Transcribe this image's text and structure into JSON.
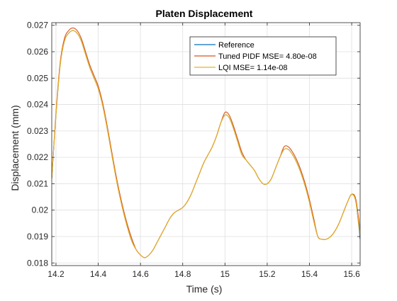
{
  "chart_data": {
    "type": "line",
    "title": "Platen Displacement",
    "xlabel": "Time (s)",
    "ylabel": "Displacement (mm)",
    "xlim": [
      14.18,
      15.64
    ],
    "ylim": [
      0.0179,
      0.0271
    ],
    "grid": true,
    "legend_position": "top-right",
    "x_ticks": [
      14.2,
      14.4,
      14.6,
      14.8,
      15,
      15.2,
      15.4,
      15.6
    ],
    "x_tick_labels": [
      "14.2",
      "14.4",
      "14.6",
      "14.8",
      "15",
      "15.2",
      "15.4",
      "15.6"
    ],
    "y_ticks": [
      0.018,
      0.019,
      0.02,
      0.021,
      0.022,
      0.023,
      0.024,
      0.025,
      0.026,
      0.027
    ],
    "y_tick_labels": [
      "0.018",
      "0.019",
      "0.02",
      "0.021",
      "0.022",
      "0.023",
      "0.024",
      "0.025",
      "0.026",
      "0.027"
    ],
    "series": [
      {
        "name": "Reference",
        "color": "#0072BD",
        "x": [
          14.18,
          14.2,
          14.22,
          14.24,
          14.26,
          14.28,
          14.3,
          14.32,
          14.34,
          14.36,
          14.38,
          14.4,
          14.42,
          14.44,
          14.46,
          14.48,
          14.5,
          14.52,
          14.54,
          14.56,
          14.58,
          14.6,
          14.62,
          14.64,
          14.66,
          14.68,
          14.7,
          14.72,
          14.74,
          14.76,
          14.78,
          14.8,
          14.82,
          14.84,
          14.86,
          14.88,
          14.9,
          14.92,
          14.94,
          14.96,
          14.98,
          15.0,
          15.02,
          15.04,
          15.06,
          15.08,
          15.1,
          15.12,
          15.14,
          15.16,
          15.18,
          15.2,
          15.22,
          15.24,
          15.26,
          15.28,
          15.3,
          15.32,
          15.34,
          15.36,
          15.38,
          15.4,
          15.42,
          15.44,
          15.46,
          15.48,
          15.5,
          15.52,
          15.54,
          15.56,
          15.58,
          15.6,
          15.62,
          15.64
        ],
        "y": [
          0.0212,
          0.0236,
          0.0255,
          0.0264,
          0.0267,
          0.0268,
          0.0267,
          0.0264,
          0.0259,
          0.0254,
          0.025,
          0.0246,
          0.024,
          0.0232,
          0.0223,
          0.0214,
          0.0206,
          0.0199,
          0.0193,
          0.0188,
          0.0185,
          0.0183,
          0.0182,
          0.0183,
          0.0185,
          0.0188,
          0.0191,
          0.0194,
          0.0197,
          0.0199,
          0.02,
          0.0201,
          0.0203,
          0.0206,
          0.021,
          0.0214,
          0.0218,
          0.0221,
          0.0224,
          0.0228,
          0.0233,
          0.0236,
          0.0235,
          0.0231,
          0.0226,
          0.0221,
          0.0219,
          0.0217,
          0.0215,
          0.0212,
          0.021,
          0.021,
          0.0212,
          0.0216,
          0.022,
          0.0223,
          0.0223,
          0.0221,
          0.0218,
          0.0214,
          0.0209,
          0.0203,
          0.0196,
          0.019,
          0.0189,
          0.0189,
          0.019,
          0.0192,
          0.0195,
          0.0199,
          0.0203,
          0.0206,
          0.0203,
          0.0189
        ]
      },
      {
        "name": "Tuned PIDF MSE= 4.80e-08",
        "color": "#D95319",
        "x": [
          14.18,
          14.2,
          14.22,
          14.24,
          14.26,
          14.28,
          14.3,
          14.32,
          14.34,
          14.36,
          14.38,
          14.4,
          14.42,
          14.44,
          14.46,
          14.48,
          14.5,
          14.52,
          14.54,
          14.56,
          14.58,
          14.6,
          14.62,
          14.64,
          14.66,
          14.68,
          14.7,
          14.72,
          14.74,
          14.76,
          14.78,
          14.8,
          14.82,
          14.84,
          14.86,
          14.88,
          14.9,
          14.92,
          14.94,
          14.96,
          14.98,
          15.0,
          15.02,
          15.04,
          15.06,
          15.08,
          15.1,
          15.12,
          15.14,
          15.16,
          15.18,
          15.2,
          15.22,
          15.24,
          15.26,
          15.28,
          15.3,
          15.32,
          15.34,
          15.36,
          15.38,
          15.4,
          15.42,
          15.44,
          15.46,
          15.48,
          15.5,
          15.52,
          15.54,
          15.56,
          15.58,
          15.6,
          15.62,
          15.64
        ],
        "y": [
          0.0212,
          0.0237,
          0.0256,
          0.0265,
          0.0268,
          0.0269,
          0.0268,
          0.0265,
          0.026,
          0.0255,
          0.0251,
          0.0247,
          0.0241,
          0.0233,
          0.0224,
          0.0215,
          0.0207,
          0.02,
          0.0194,
          0.0189,
          0.0185,
          0.0183,
          0.0182,
          0.0183,
          0.0185,
          0.0188,
          0.0191,
          0.0194,
          0.0197,
          0.0199,
          0.02,
          0.0201,
          0.0203,
          0.0206,
          0.021,
          0.0214,
          0.0218,
          0.0221,
          0.0224,
          0.0228,
          0.0233,
          0.0237,
          0.0236,
          0.0232,
          0.0227,
          0.0222,
          0.0219,
          0.0217,
          0.0215,
          0.0212,
          0.021,
          0.021,
          0.0212,
          0.0216,
          0.022,
          0.0224,
          0.0224,
          0.0222,
          0.0219,
          0.0215,
          0.021,
          0.0204,
          0.0197,
          0.019,
          0.0189,
          0.0189,
          0.019,
          0.0192,
          0.0195,
          0.0199,
          0.0203,
          0.0206,
          0.0204,
          0.0192
        ]
      },
      {
        "name": "LQI MSE= 1.14e-08",
        "color": "#EDB120",
        "x": [
          14.18,
          14.2,
          14.22,
          14.24,
          14.26,
          14.28,
          14.3,
          14.32,
          14.34,
          14.36,
          14.38,
          14.4,
          14.42,
          14.44,
          14.46,
          14.48,
          14.5,
          14.52,
          14.54,
          14.56,
          14.58,
          14.6,
          14.62,
          14.64,
          14.66,
          14.68,
          14.7,
          14.72,
          14.74,
          14.76,
          14.78,
          14.8,
          14.82,
          14.84,
          14.86,
          14.88,
          14.9,
          14.92,
          14.94,
          14.96,
          14.98,
          15.0,
          15.02,
          15.04,
          15.06,
          15.08,
          15.1,
          15.12,
          15.14,
          15.16,
          15.18,
          15.2,
          15.22,
          15.24,
          15.26,
          15.28,
          15.3,
          15.32,
          15.34,
          15.36,
          15.38,
          15.4,
          15.42,
          15.44,
          15.46,
          15.48,
          15.5,
          15.52,
          15.54,
          15.56,
          15.58,
          15.6,
          15.62,
          15.64
        ],
        "y": [
          0.0212,
          0.0236,
          0.0255,
          0.0264,
          0.0267,
          0.0268,
          0.0267,
          0.0264,
          0.0259,
          0.0254,
          0.025,
          0.0246,
          0.024,
          0.0232,
          0.0223,
          0.0214,
          0.0206,
          0.0199,
          0.0193,
          0.0188,
          0.0185,
          0.0183,
          0.0182,
          0.0183,
          0.0185,
          0.0188,
          0.0191,
          0.0194,
          0.0197,
          0.0199,
          0.02,
          0.0201,
          0.0203,
          0.0206,
          0.021,
          0.0214,
          0.0218,
          0.0221,
          0.0224,
          0.0228,
          0.0233,
          0.0236,
          0.0235,
          0.0231,
          0.0226,
          0.0221,
          0.0219,
          0.0217,
          0.0215,
          0.0212,
          0.021,
          0.021,
          0.0212,
          0.0216,
          0.022,
          0.0223,
          0.0223,
          0.0221,
          0.0218,
          0.0214,
          0.0209,
          0.0203,
          0.0196,
          0.019,
          0.0189,
          0.0189,
          0.019,
          0.0192,
          0.0195,
          0.0199,
          0.0203,
          0.0206,
          0.0203,
          0.019
        ]
      }
    ]
  }
}
